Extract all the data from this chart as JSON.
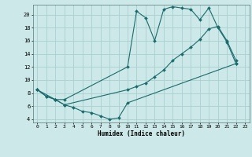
{
  "xlabel": "Humidex (Indice chaleur)",
  "bg_color": "#cce8e8",
  "grid_color": "#aacfcf",
  "line_color": "#1a6b6b",
  "xlim": [
    -0.5,
    23.5
  ],
  "ylim": [
    3.5,
    21.5
  ],
  "xticks": [
    0,
    1,
    2,
    3,
    4,
    5,
    6,
    7,
    8,
    9,
    10,
    11,
    12,
    13,
    14,
    15,
    16,
    17,
    18,
    19,
    20,
    21,
    22,
    23
  ],
  "yticks": [
    4,
    6,
    8,
    10,
    12,
    14,
    16,
    18,
    20
  ],
  "curve1_x": [
    0,
    1,
    2,
    3,
    10,
    11,
    12,
    13,
    14,
    15,
    16,
    17,
    18,
    19,
    20,
    21,
    22
  ],
  "curve1_y": [
    8.5,
    7.5,
    7.0,
    7.0,
    12.0,
    20.5,
    19.5,
    16.0,
    20.8,
    21.2,
    21.0,
    20.8,
    19.2,
    21.0,
    18.0,
    15.8,
    12.5
  ],
  "curve2_x": [
    0,
    2,
    3,
    10,
    11,
    12,
    13,
    14,
    15,
    16,
    17,
    18,
    19,
    20,
    21,
    22
  ],
  "curve2_y": [
    8.5,
    7.0,
    6.2,
    8.5,
    9.0,
    9.5,
    10.5,
    11.5,
    13.0,
    14.0,
    15.0,
    16.2,
    17.8,
    18.2,
    16.0,
    13.0
  ],
  "curve3_x": [
    0,
    1,
    2,
    3,
    4,
    5,
    6,
    7,
    8,
    9,
    10,
    22
  ],
  "curve3_y": [
    8.5,
    7.5,
    7.0,
    6.2,
    5.8,
    5.2,
    5.0,
    4.5,
    4.0,
    4.2,
    6.5,
    12.5
  ]
}
